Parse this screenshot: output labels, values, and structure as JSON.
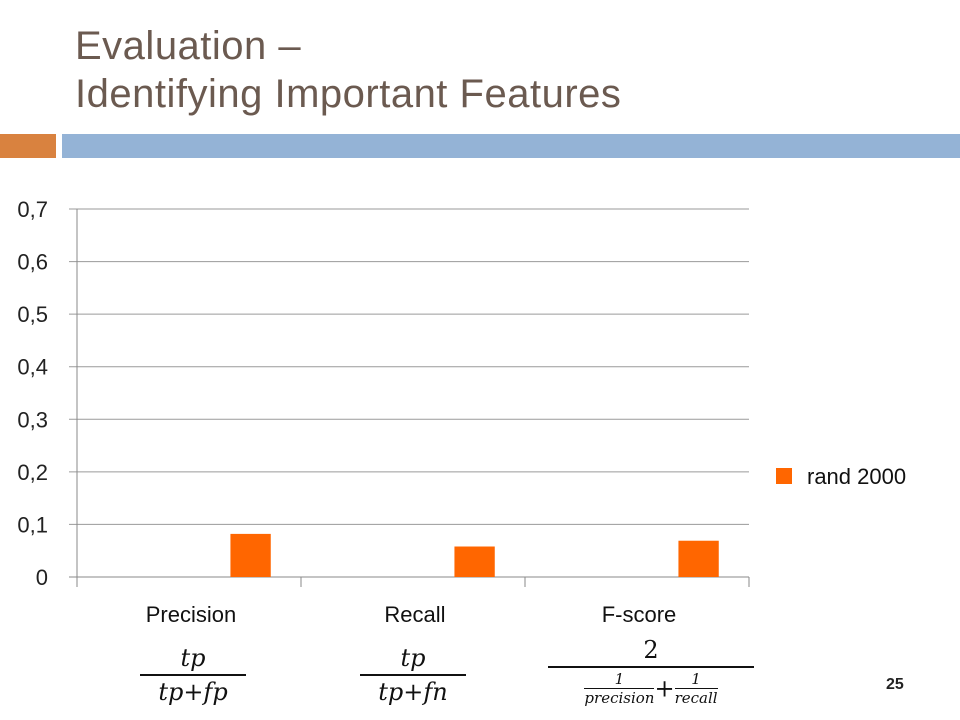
{
  "slide": {
    "title_line1": "Evaluation –",
    "title_line2": "Identifying Important Features",
    "page_number": "25",
    "accent_orange": "#d9823f",
    "accent_blue": "#94b3d6"
  },
  "formulas": {
    "precision": {
      "num": "tp",
      "den": "tp+fp"
    },
    "recall": {
      "num": "tp",
      "den": "tp+fn"
    },
    "fscore": {
      "num": "2",
      "den_left_num": "1",
      "den_left_den": "precision",
      "plus": "+",
      "den_right_num": "1",
      "den_right_den": "recall"
    }
  },
  "chart_data": {
    "type": "bar",
    "categories": [
      "Precision",
      "Recall",
      "F-score"
    ],
    "series": [
      {
        "name": "rand 2000",
        "values": [
          0.082,
          0.058,
          0.069
        ],
        "color": "#ff6600"
      }
    ],
    "ylim": [
      0,
      0.7
    ],
    "yticks": [
      0,
      0.1,
      0.2,
      0.3,
      0.4,
      0.5,
      0.6,
      0.7
    ],
    "ytick_labels": [
      "0",
      "0,1",
      "0,2",
      "0,3",
      "0,4",
      "0,5",
      "0,6",
      "0,7"
    ],
    "grid": true,
    "legend": "right",
    "title": "",
    "xlabel": "",
    "ylabel": ""
  }
}
